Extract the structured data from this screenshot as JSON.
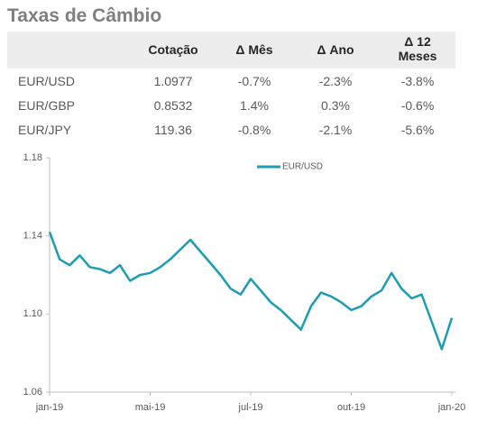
{
  "header": {
    "title": "Taxas de Câmbio"
  },
  "table": {
    "columns": [
      "Cotação",
      "Δ Mês",
      "Δ Ano",
      "Δ 12 Meses"
    ],
    "rows": [
      {
        "pair": "EUR/USD",
        "cells": [
          "1.0977",
          "-0.7%",
          "-2.3%",
          "-3.8%"
        ]
      },
      {
        "pair": "EUR/GBP",
        "cells": [
          "0.8532",
          "1.4%",
          "0.3%",
          "-0.6%"
        ]
      },
      {
        "pair": "EUR/JPY",
        "cells": [
          "119.36",
          "-0.8%",
          "-2.1%",
          "-5.6%"
        ]
      }
    ]
  },
  "chart_data": {
    "type": "line",
    "categories": [
      "jan-19",
      null,
      null,
      null,
      null,
      null,
      null,
      null,
      null,
      null,
      "mai-19",
      null,
      null,
      null,
      null,
      null,
      null,
      null,
      null,
      null,
      "jul-19",
      null,
      null,
      null,
      null,
      null,
      null,
      null,
      null,
      null,
      "out-19",
      null,
      null,
      null,
      null,
      null,
      null,
      null,
      null,
      null,
      "jan-20"
    ],
    "series": [
      {
        "name": "EUR/USD",
        "color": "#1c9db3",
        "values": [
          1.142,
          1.128,
          1.125,
          1.13,
          1.124,
          1.123,
          1.121,
          1.125,
          1.117,
          1.12,
          1.121,
          1.124,
          1.128,
          1.133,
          1.138,
          1.132,
          1.126,
          1.12,
          1.113,
          1.11,
          1.118,
          1.112,
          1.106,
          1.102,
          1.097,
          1.092,
          1.104,
          1.111,
          1.109,
          1.106,
          1.102,
          1.104,
          1.109,
          1.112,
          1.121,
          1.113,
          1.108,
          1.11,
          1.096,
          1.082,
          1.098
        ]
      }
    ],
    "ylim": [
      1.06,
      1.18
    ],
    "yticks": [
      1.06,
      {
        "value": 1.1,
        "label": "1.10"
      },
      1.14,
      1.18
    ],
    "legend": "top",
    "grid": false
  }
}
